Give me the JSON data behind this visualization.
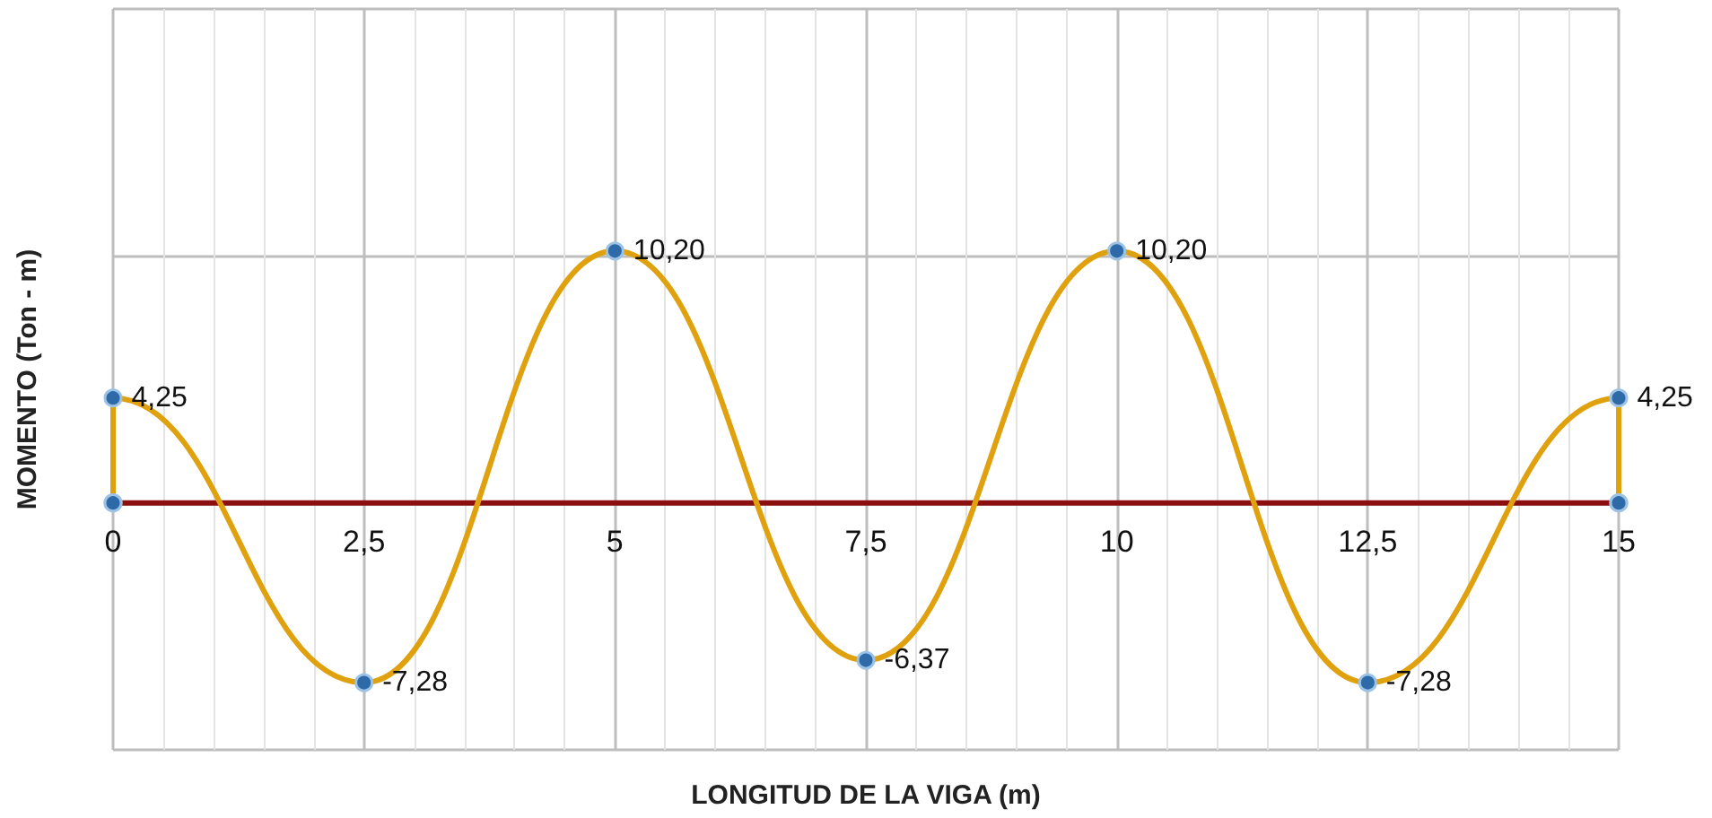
{
  "chart_data": {
    "type": "line",
    "xlabel": "LONGITUD DE LA VIGA (m)",
    "ylabel": "MOMENTO (Ton - m)",
    "series": [
      {
        "color": "#8b0f0f",
        "x": [
          0,
          15
        ],
        "values": [
          0,
          0
        ]
      },
      {
        "color": "#e0a10f",
        "x": [
          0,
          0,
          2.5,
          5,
          7.5,
          10,
          12.5,
          15,
          15
        ],
        "values": [
          0,
          4.25,
          -7.28,
          10.2,
          -6.37,
          10.2,
          -7.28,
          4.25,
          0
        ],
        "value_labels": [
          null,
          "4,25",
          "-7,28",
          "10,20",
          "-6,37",
          "10,20",
          "-7,28",
          "4,25",
          null
        ]
      }
    ],
    "xlim": [
      0,
      15
    ],
    "xticks": [
      0,
      {
        "value": 2.5,
        "label": "2,5"
      },
      5,
      {
        "value": 7.5,
        "label": "7,5"
      },
      10,
      {
        "value": 12.5,
        "label": "12,5"
      },
      15
    ],
    "ylim": [
      -10,
      20
    ],
    "yticks": [
      {
        "value": -10,
        "label": null
      },
      {
        "value": 0,
        "label": null
      },
      {
        "value": 10,
        "label": null
      },
      {
        "value": 20,
        "label": null
      }
    ],
    "tick_labels": "x",
    "grid": true,
    "marker": "circle",
    "line_style": "solid"
  }
}
